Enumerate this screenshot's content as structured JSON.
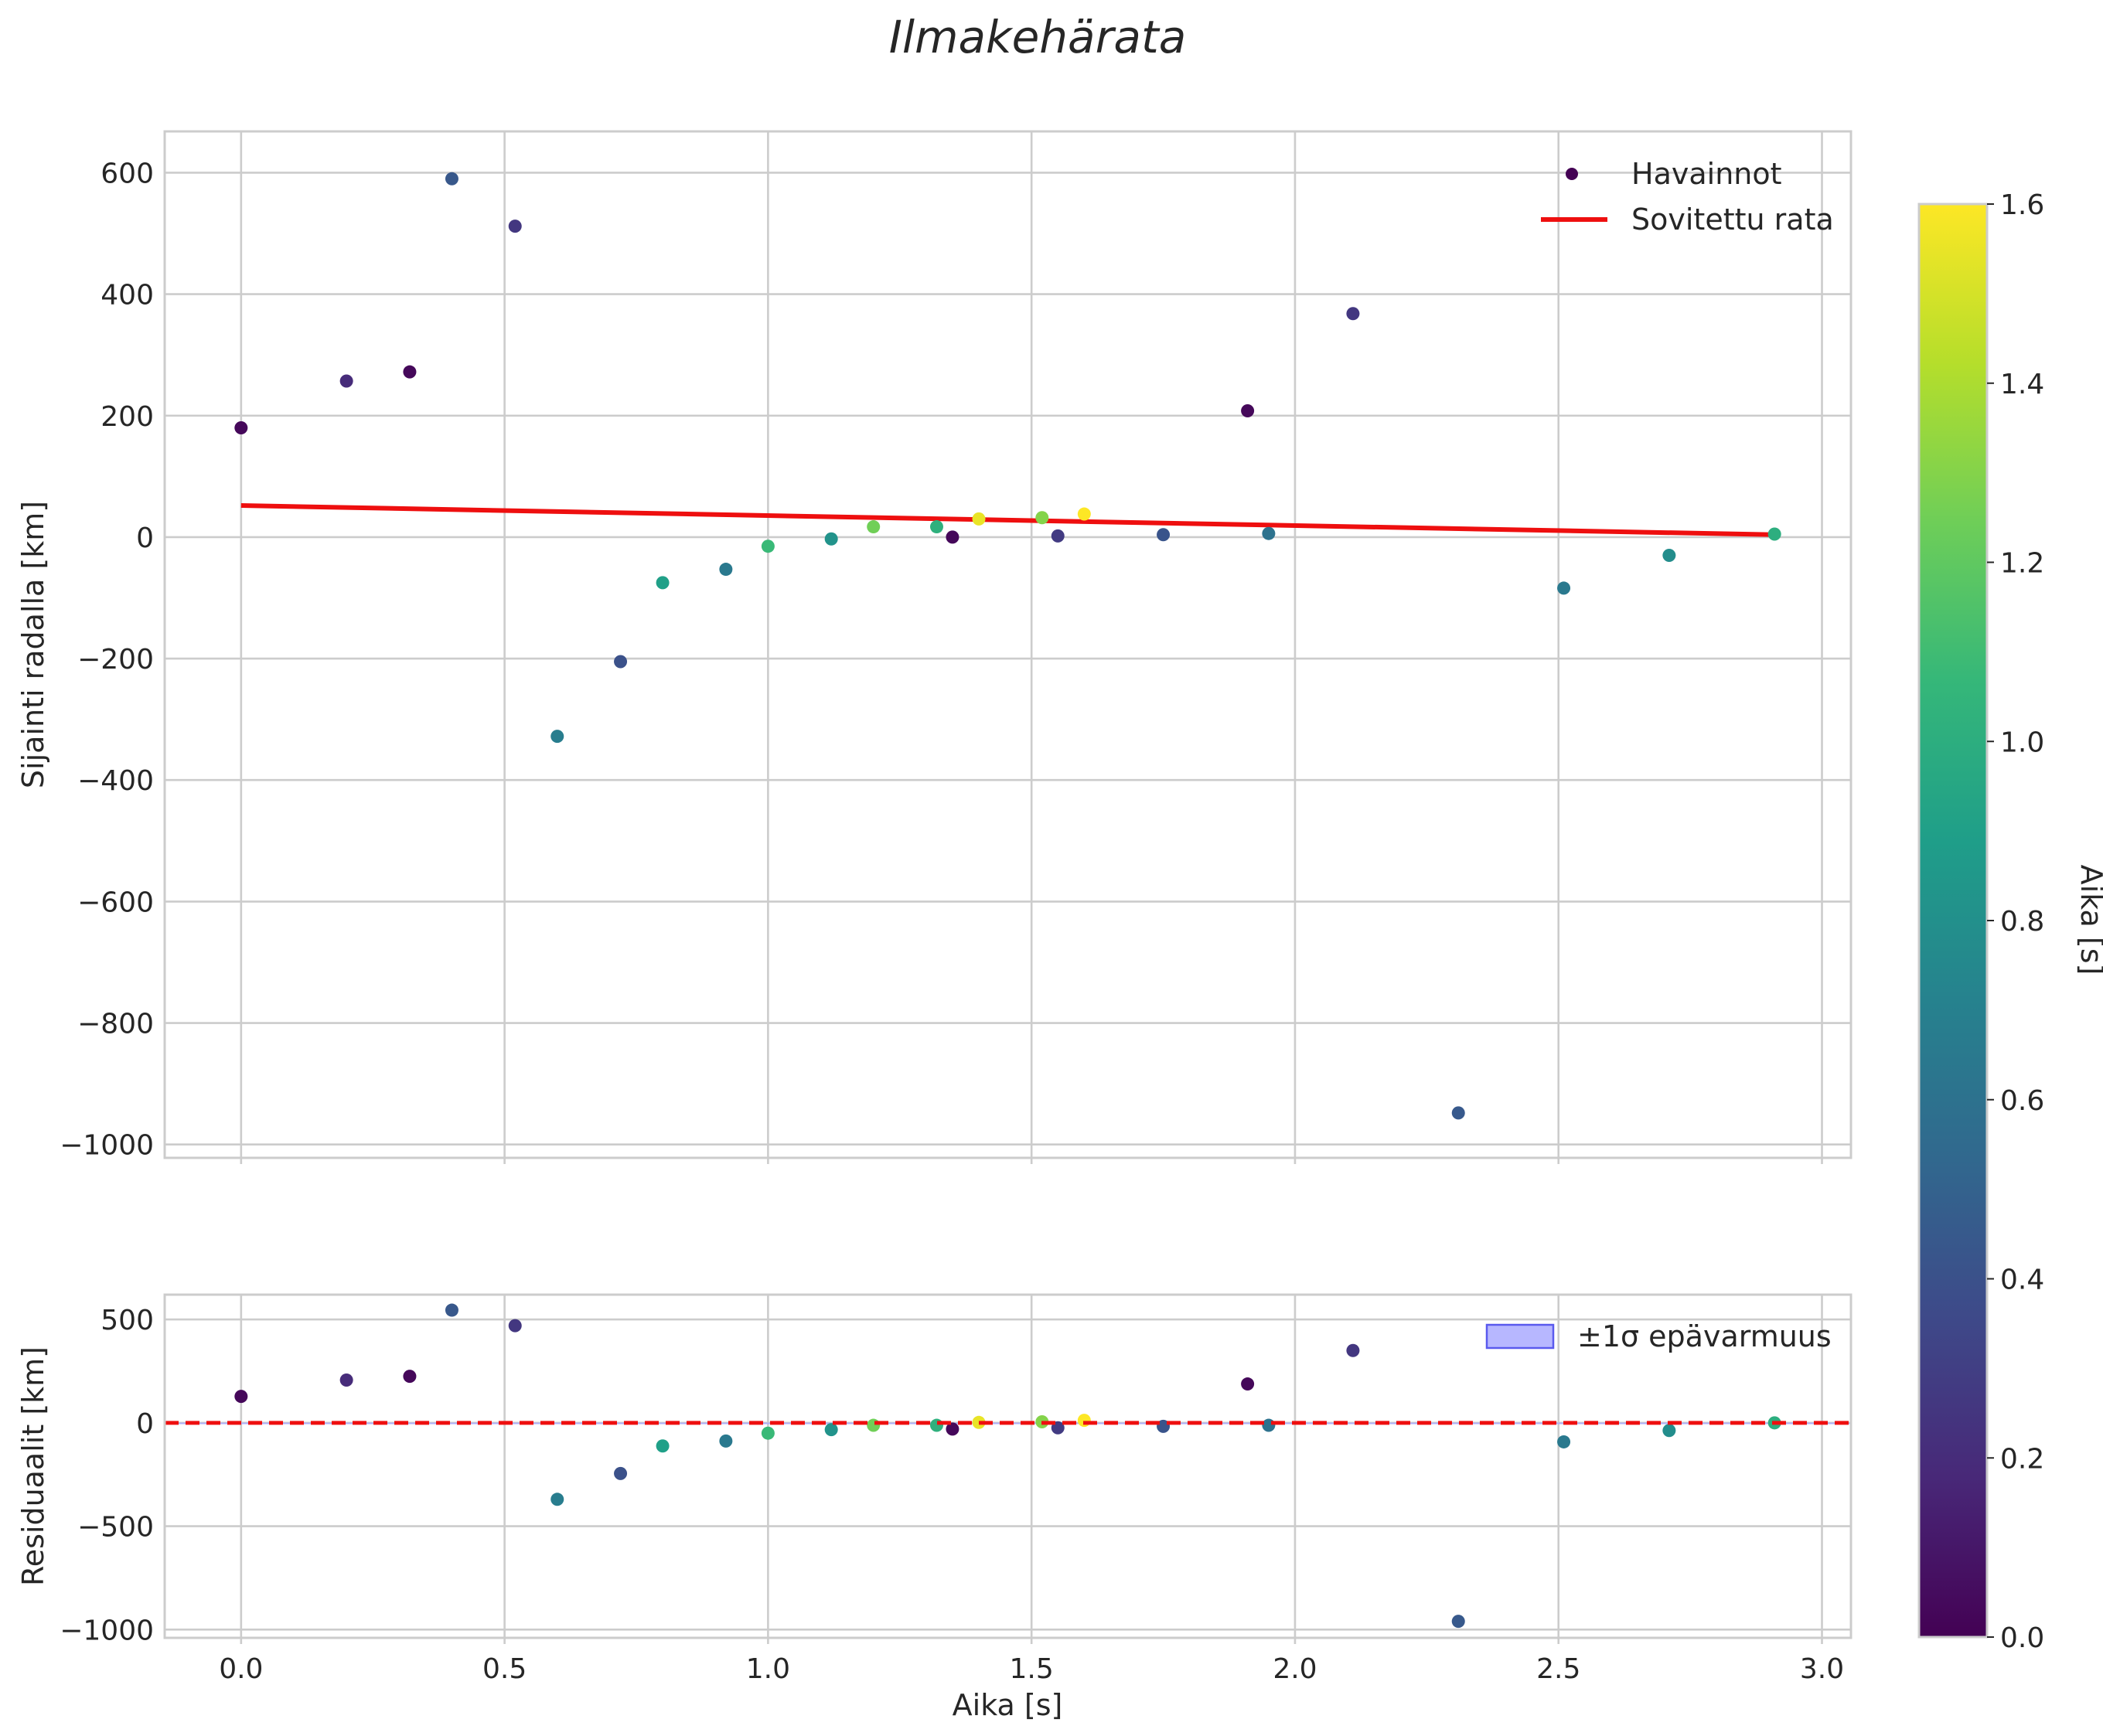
{
  "chart_data": [
    {
      "type": "scatter",
      "title": "Ilmakehärata",
      "xlabel": "",
      "ylabel": "Sijainti radalla [km]",
      "xlim": [
        -0.145,
        3.055
      ],
      "ylim": [
        -1022,
        668
      ],
      "xticks": [
        0.0,
        0.5,
        1.0,
        1.5,
        2.0,
        2.5,
        3.0
      ],
      "yticks": [
        600,
        400,
        200,
        0,
        -200,
        -400,
        -600,
        -800,
        -1000
      ],
      "ytick_labels": [
        "600",
        "400",
        "200",
        "0",
        "−200",
        "−400",
        "−600",
        "−800",
        "−1000"
      ],
      "grid": true,
      "legend": {
        "position": "top-right",
        "entries": [
          "Havainnot",
          "Sovitettu rata"
        ]
      },
      "series": [
        {
          "name": "Havainnot",
          "kind": "scatter",
          "colored_by": "Aika [s]",
          "points": [
            {
              "x": 0.0,
              "y": 180,
              "c": 0.03
            },
            {
              "x": 0.2,
              "y": 257,
              "c": 0.2
            },
            {
              "x": 0.32,
              "y": 272,
              "c": 0.03
            },
            {
              "x": 0.4,
              "y": 590,
              "c": 0.44
            },
            {
              "x": 0.52,
              "y": 512,
              "c": 0.26
            },
            {
              "x": 0.6,
              "y": -328,
              "c": 0.68
            },
            {
              "x": 0.72,
              "y": -205,
              "c": 0.4
            },
            {
              "x": 0.8,
              "y": -75,
              "c": 0.9
            },
            {
              "x": 0.92,
              "y": -53,
              "c": 0.65
            },
            {
              "x": 1.0,
              "y": -15,
              "c": 1.08
            },
            {
              "x": 1.12,
              "y": -3,
              "c": 0.82
            },
            {
              "x": 1.2,
              "y": 17,
              "c": 1.25
            },
            {
              "x": 1.32,
              "y": 17,
              "c": 1.02
            },
            {
              "x": 1.35,
              "y": 0,
              "c": 0.03
            },
            {
              "x": 1.4,
              "y": 30,
              "c": 1.55
            },
            {
              "x": 1.52,
              "y": 32,
              "c": 1.3
            },
            {
              "x": 1.55,
              "y": 2,
              "c": 0.28
            },
            {
              "x": 1.6,
              "y": 38,
              "c": 1.6
            },
            {
              "x": 1.75,
              "y": 4,
              "c": 0.42
            },
            {
              "x": 1.91,
              "y": 208,
              "c": 0.03
            },
            {
              "x": 1.95,
              "y": 6,
              "c": 0.6
            },
            {
              "x": 2.11,
              "y": 368,
              "c": 0.26
            },
            {
              "x": 2.31,
              "y": -948,
              "c": 0.45
            },
            {
              "x": 2.51,
              "y": -84,
              "c": 0.65
            },
            {
              "x": 2.71,
              "y": -30,
              "c": 0.78
            },
            {
              "x": 2.91,
              "y": 5,
              "c": 1.0
            }
          ]
        },
        {
          "name": "Sovitettu rata",
          "kind": "line",
          "color": "#ee0f0f",
          "x": [
            0.0,
            2.91
          ],
          "y": [
            52,
            4
          ]
        }
      ]
    },
    {
      "type": "scatter",
      "title": "",
      "xlabel": "Aika [s]",
      "ylabel": "Residuaalit [km]",
      "xlim": [
        -0.145,
        3.055
      ],
      "ylim": [
        -1040,
        620
      ],
      "xticks": [
        0.0,
        0.5,
        1.0,
        1.5,
        2.0,
        2.5,
        3.0
      ],
      "xtick_labels": [
        "0.0",
        "0.5",
        "1.0",
        "1.5",
        "2.0",
        "2.5",
        "3.0"
      ],
      "yticks": [
        500,
        0,
        -500,
        -1000
      ],
      "ytick_labels": [
        "500",
        "0",
        "−500",
        "−1000"
      ],
      "grid": true,
      "legend": {
        "position": "top-right",
        "entries": [
          "±1σ epävarmuus"
        ]
      },
      "series": [
        {
          "name": "Residuaalit",
          "kind": "scatter",
          "colored_by": "Aika [s]",
          "points": [
            {
              "x": 0.0,
              "y": 128,
              "c": 0.03
            },
            {
              "x": 0.2,
              "y": 207,
              "c": 0.2
            },
            {
              "x": 0.32,
              "y": 225,
              "c": 0.03
            },
            {
              "x": 0.4,
              "y": 545,
              "c": 0.44
            },
            {
              "x": 0.52,
              "y": 470,
              "c": 0.26
            },
            {
              "x": 0.6,
              "y": -370,
              "c": 0.68
            },
            {
              "x": 0.72,
              "y": -245,
              "c": 0.4
            },
            {
              "x": 0.8,
              "y": -112,
              "c": 0.9
            },
            {
              "x": 0.92,
              "y": -88,
              "c": 0.65
            },
            {
              "x": 1.0,
              "y": -50,
              "c": 1.08
            },
            {
              "x": 1.12,
              "y": -33,
              "c": 0.82
            },
            {
              "x": 1.2,
              "y": -12,
              "c": 1.25
            },
            {
              "x": 1.32,
              "y": -12,
              "c": 1.02
            },
            {
              "x": 1.35,
              "y": -30,
              "c": 0.03
            },
            {
              "x": 1.4,
              "y": 2,
              "c": 1.55
            },
            {
              "x": 1.52,
              "y": 5,
              "c": 1.3
            },
            {
              "x": 1.55,
              "y": -24,
              "c": 0.28
            },
            {
              "x": 1.6,
              "y": 12,
              "c": 1.6
            },
            {
              "x": 1.75,
              "y": -17,
              "c": 0.42
            },
            {
              "x": 1.91,
              "y": 188,
              "c": 0.03
            },
            {
              "x": 1.95,
              "y": -12,
              "c": 0.6
            },
            {
              "x": 2.11,
              "y": 350,
              "c": 0.26
            },
            {
              "x": 2.31,
              "y": -960,
              "c": 0.45
            },
            {
              "x": 2.51,
              "y": -92,
              "c": 0.65
            },
            {
              "x": 2.71,
              "y": -37,
              "c": 0.78
            },
            {
              "x": 2.91,
              "y": 0,
              "c": 1.0
            }
          ]
        },
        {
          "name": "zero-line",
          "kind": "line",
          "style": "dashed",
          "color": "#ee0f0f",
          "y": 0
        },
        {
          "name": "±1σ epävarmuus",
          "kind": "band",
          "color": "#aaaaff",
          "lower": -1,
          "upper": 1
        }
      ]
    }
  ],
  "colorbar": {
    "label": "Aika [s]",
    "range": [
      0.0,
      1.6
    ],
    "ticks": [
      0.0,
      0.2,
      0.4,
      0.6,
      0.8,
      1.0,
      1.2,
      1.4,
      1.6
    ],
    "tick_labels": [
      "0.0",
      "0.2",
      "0.4",
      "0.6",
      "0.8",
      "1.0",
      "1.2",
      "1.4",
      "1.6"
    ],
    "colormap": "viridis",
    "stops": [
      "#440154",
      "#482878",
      "#3e4989",
      "#31688e",
      "#26828e",
      "#1f9e89",
      "#35b779",
      "#6ece58",
      "#b5de2b",
      "#fde725"
    ]
  }
}
